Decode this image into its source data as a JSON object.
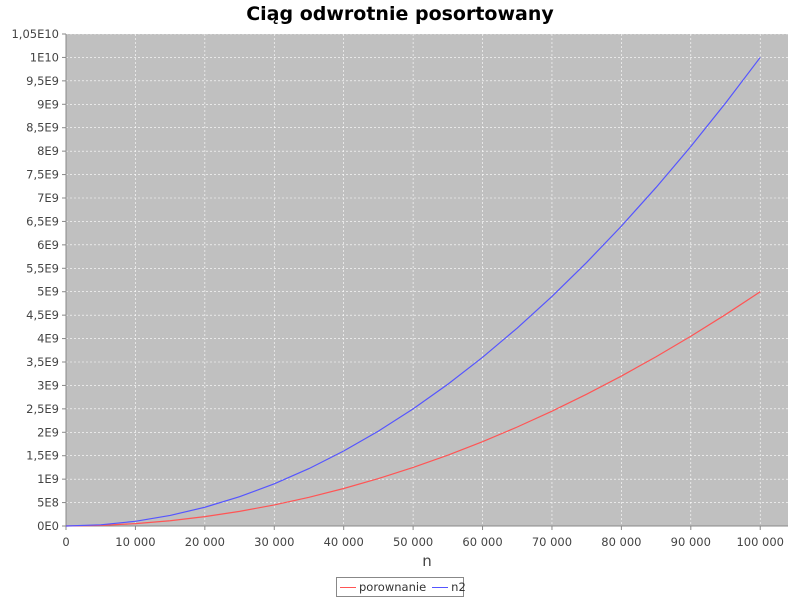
{
  "chart_data": {
    "type": "line",
    "title": "Ciąg odwrotnie posortowany",
    "xlabel": "n",
    "ylabel": "",
    "xlim": [
      0,
      104000
    ],
    "ylim": [
      0,
      10500000000
    ],
    "x_ticks": [
      0,
      10000,
      20000,
      30000,
      40000,
      50000,
      60000,
      70000,
      80000,
      90000,
      100000
    ],
    "x_tick_labels": [
      "0",
      "10 000",
      "20 000",
      "30 000",
      "40 000",
      "50 000",
      "60 000",
      "70 000",
      "80 000",
      "90 000",
      "100 000"
    ],
    "y_ticks": [
      0,
      500000000,
      1000000000,
      1500000000,
      2000000000,
      2500000000,
      3000000000,
      3500000000,
      4000000000,
      4500000000,
      5000000000,
      5500000000,
      6000000000,
      6500000000,
      7000000000,
      7500000000,
      8000000000,
      8500000000,
      9000000000,
      9500000000,
      10000000000,
      10500000000
    ],
    "y_tick_labels": [
      "0E0",
      "5E8",
      "1E9",
      "1,5E9",
      "2E9",
      "2,5E9",
      "3E9",
      "3,5E9",
      "4E9",
      "4,5E9",
      "5E9",
      "5,5E9",
      "6E9",
      "6,5E9",
      "7E9",
      "7,5E9",
      "8E9",
      "8,5E9",
      "9E9",
      "9,5E9",
      "1E10",
      "1,05E10"
    ],
    "grid": true,
    "legend_position": "bottom",
    "background_color": "#c0c0c0",
    "x": [
      0,
      5000,
      10000,
      15000,
      20000,
      25000,
      30000,
      35000,
      40000,
      45000,
      50000,
      55000,
      60000,
      65000,
      70000,
      75000,
      80000,
      85000,
      90000,
      95000,
      100000
    ],
    "series": [
      {
        "name": "porownanie",
        "color": "#ff5555",
        "values": [
          0,
          12500000,
          50000000,
          112500000,
          200000000,
          312500000,
          450000000,
          612500000,
          800000000,
          1012500000,
          1250000000,
          1512500000,
          1800000000,
          2112500000,
          2450000000,
          2812500000,
          3200000000,
          3612500000,
          4050000000,
          4512500000,
          5000000000
        ]
      },
      {
        "name": "n2",
        "color": "#5555ff",
        "values": [
          0,
          25000000,
          100000000,
          225000000,
          400000000,
          625000000,
          900000000,
          1225000000,
          1600000000,
          2025000000,
          2500000000,
          3025000000,
          3600000000,
          4225000000,
          4900000000,
          5625000000,
          6400000000,
          7225000000,
          8100000000,
          9025000000,
          10000000000
        ]
      }
    ]
  }
}
